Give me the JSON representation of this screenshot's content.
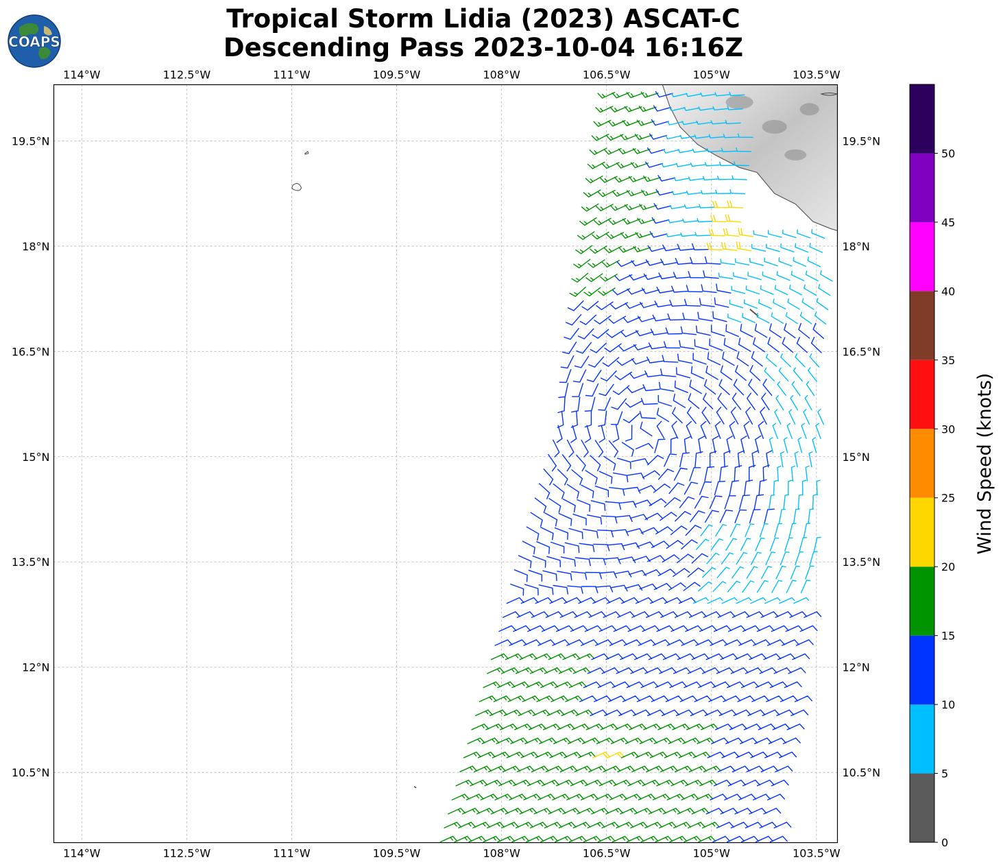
{
  "title_line1": "Tropical Storm Lidia (2023) ASCAT-C",
  "title_line2": "Descending Pass 2023-10-04 16:16Z",
  "logo": {
    "text": "COAPS",
    "icon": "globe-logo-icon"
  },
  "colorbar": {
    "label": "Wind Speed (knots)",
    "ticks": [
      "0",
      "5",
      "10",
      "15",
      "20",
      "25",
      "30",
      "35",
      "40",
      "45",
      "50"
    ],
    "bins": [
      {
        "range": [
          0,
          5
        ],
        "color": "#5a5a5a"
      },
      {
        "range": [
          5,
          10
        ],
        "color": "#00bfff"
      },
      {
        "range": [
          10,
          15
        ],
        "color": "#0033ff"
      },
      {
        "range": [
          15,
          20
        ],
        "color": "#009400"
      },
      {
        "range": [
          20,
          25
        ],
        "color": "#ffd700"
      },
      {
        "range": [
          25,
          30
        ],
        "color": "#ff8c00"
      },
      {
        "range": [
          30,
          35
        ],
        "color": "#ff0f0f"
      },
      {
        "range": [
          35,
          40
        ],
        "color": "#803c28"
      },
      {
        "range": [
          40,
          45
        ],
        "color": "#ff00ff"
      },
      {
        "range": [
          45,
          50
        ],
        "color": "#8000bf"
      },
      {
        "range": [
          50,
          55
        ],
        "color": "#2e005e"
      }
    ]
  },
  "chart_data": {
    "type": "scatter",
    "title": "Tropical Storm Lidia (2023) ASCAT-C Descending Pass 2023-10-04 16:16Z",
    "xlim": [
      -114.4,
      -103.2
    ],
    "ylim": [
      9.5,
      20.3
    ],
    "grid": true,
    "xticks": [
      -114,
      -112.5,
      -111,
      -109.5,
      -108,
      -106.5,
      -105,
      -103.5
    ],
    "xtick_labels": [
      "114°W",
      "112.5°W",
      "111°W",
      "109.5°W",
      "108°W",
      "106.5°W",
      "105°W",
      "103.5°W"
    ],
    "yticks": [
      10.5,
      12,
      13.5,
      15,
      16.5,
      18,
      19.5
    ],
    "ytick_labels": [
      "10.5°N",
      "12°N",
      "13.5°N",
      "15°N",
      "16.5°N",
      "18°N",
      "19.5°N"
    ],
    "storm_center": [
      -106.0,
      15.3
    ],
    "swath": {
      "left_edge": [
        [
          -108.85,
          9.5
        ],
        [
          -107.2,
          15.4
        ],
        [
          -106.5,
          20.3
        ]
      ],
      "right_edge": [
        [
          -104.0,
          9.5
        ],
        [
          -103.5,
          12.5
        ],
        [
          -103.2,
          20.3
        ]
      ]
    },
    "wind_speed_bands": [
      {
        "region": "south-west of swath (y < 11.3)",
        "speed_kt": 17,
        "color_bin": "15-20"
      },
      {
        "region": "south-east band",
        "speed_kt": 13,
        "color_bin": "10-15"
      },
      {
        "region": "inner core near center",
        "speed_kt": 13,
        "color_bin": "10-15"
      },
      {
        "region": "outer western ring",
        "speed_kt": 17,
        "color_bin": "15-20"
      },
      {
        "region": "north-east near coast",
        "speed_kt": 8,
        "color_bin": "5-10"
      },
      {
        "region": "isolated patches",
        "speed_kt": 22,
        "color_bin": "20-25"
      }
    ]
  }
}
